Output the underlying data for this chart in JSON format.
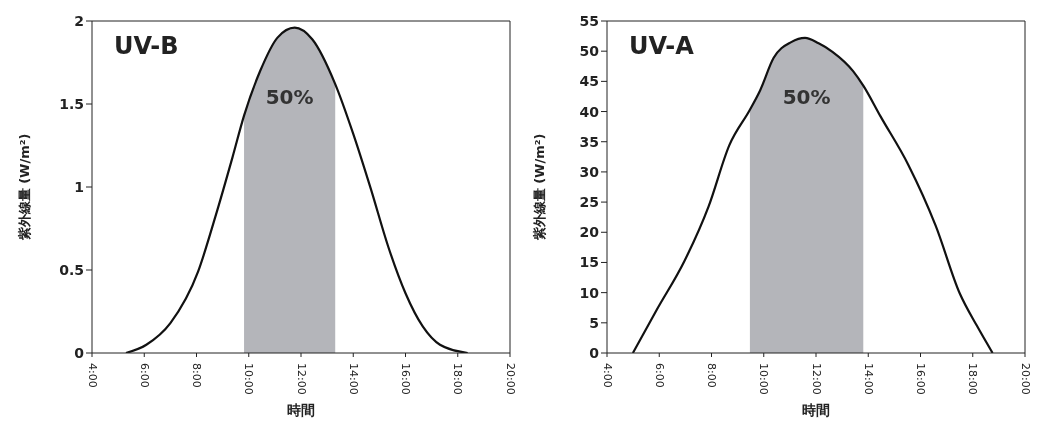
{
  "chart_data": [
    {
      "type": "line",
      "title": "UV-B",
      "xlabel": "時間",
      "ylabel": "紫外線量 (W/m²)",
      "xlim": [
        4,
        20
      ],
      "xticks": [
        {
          "value": 4,
          "label": "4:00"
        },
        {
          "value": 6,
          "label": "6:00"
        },
        {
          "value": 8,
          "label": "8:00"
        },
        {
          "value": 10,
          "label": "10:00"
        },
        {
          "value": 12,
          "label": "12:00"
        },
        {
          "value": 14,
          "label": "14:00"
        },
        {
          "value": 16,
          "label": "16:00"
        },
        {
          "value": 18,
          "label": "18:00"
        },
        {
          "value": 20,
          "label": "20:00"
        }
      ],
      "ylim": [
        0,
        2
      ],
      "yticks": [
        0,
        0.5,
        1,
        1.5,
        2
      ],
      "grid": false,
      "marker": "none",
      "annotations": [
        "50%"
      ],
      "series": [
        {
          "type": "area",
          "color": "#b4b5ba",
          "x": [
            9.82,
            10.44,
            11.1,
            11.76,
            12.43,
            13.31
          ],
          "values": [
            1.43,
            1.7,
            1.9,
            1.96,
            1.89,
            1.62
          ]
        },
        {
          "color": "#111111",
          "x": [
            5.3,
            6.08,
            7.0,
            8.06,
            8.72,
            9.38,
            9.82,
            10.44,
            11.1,
            11.76,
            12.43,
            13.31,
            14.0,
            14.67,
            15.34,
            16.0,
            16.66,
            17.32,
            18.38
          ],
          "values": [
            0,
            0.05,
            0.18,
            0.49,
            0.82,
            1.18,
            1.43,
            1.7,
            1.9,
            1.96,
            1.89,
            1.62,
            1.32,
            0.99,
            0.64,
            0.36,
            0.16,
            0.05,
            0
          ]
        }
      ]
    },
    {
      "type": "line",
      "title": "UV-A",
      "xlabel": "時間",
      "ylabel": "紫外線量 (W/m²)",
      "xlim": [
        4,
        20
      ],
      "xticks": [
        {
          "value": 4,
          "label": "4:00"
        },
        {
          "value": 6,
          "label": "6:00"
        },
        {
          "value": 8,
          "label": "8:00"
        },
        {
          "value": 10,
          "label": "10:00"
        },
        {
          "value": 12,
          "label": "12:00"
        },
        {
          "value": 14,
          "label": "14:00"
        },
        {
          "value": 16,
          "label": "16:00"
        },
        {
          "value": 18,
          "label": "18:00"
        },
        {
          "value": 20,
          "label": "20:00"
        }
      ],
      "ylim": [
        0,
        55
      ],
      "yticks": [
        0,
        5,
        10,
        15,
        20,
        25,
        30,
        35,
        40,
        45,
        50,
        55
      ],
      "grid": false,
      "marker": "none",
      "annotations": [
        "50%"
      ],
      "series": [
        {
          "type": "area",
          "color": "#b4b5ba",
          "x": [
            9.47,
            9.86,
            10.38,
            11.05,
            11.58,
            12.1,
            12.63,
            13.42,
            13.81
          ],
          "values": [
            40.3,
            43.5,
            48.9,
            51.5,
            52.2,
            51.3,
            49.9,
            46.7,
            44.3
          ]
        },
        {
          "color": "#111111",
          "x": [
            4.99,
            5.91,
            6.96,
            7.89,
            8.68,
            9.47,
            9.86,
            10.38,
            11.05,
            11.58,
            12.1,
            12.63,
            13.42,
            13.81,
            14.47,
            15.53,
            16.58,
            17.5,
            18.16,
            18.76
          ],
          "values": [
            0,
            7.2,
            15.2,
            24.3,
            34.4,
            40.3,
            43.5,
            48.9,
            51.5,
            52.2,
            51.3,
            49.9,
            46.7,
            44.3,
            39.2,
            31.2,
            21.1,
            9.9,
            4.5,
            0
          ]
        }
      ]
    }
  ]
}
